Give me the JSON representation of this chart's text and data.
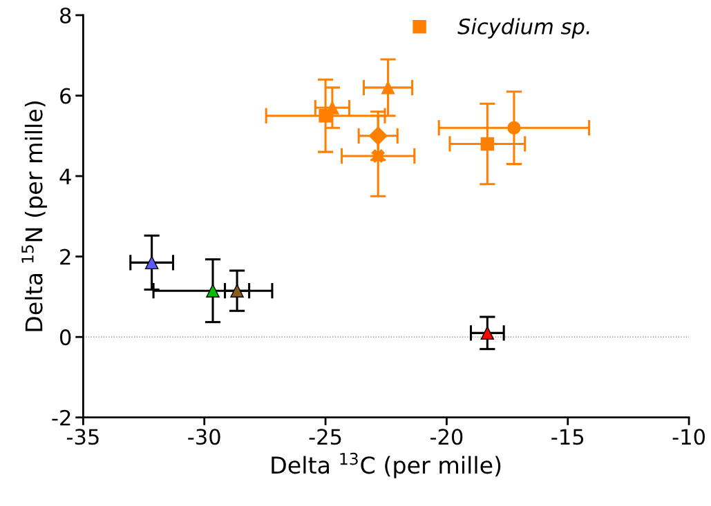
{
  "chart_data": {
    "type": "scatter",
    "xlabel": "Delta $^{13}$C (per mille)",
    "ylabel": "Delta $^{15}$N (per mille)",
    "xlim": [
      -35,
      -10
    ],
    "xticks": [
      -35,
      -30,
      -25,
      -20,
      -15,
      -10
    ],
    "ylim": [
      -2,
      8
    ],
    "yticks": [
      -2,
      0,
      2,
      4,
      6,
      8
    ],
    "grid": false,
    "legend": "top",
    "ref_lines": [
      {
        "axis": "y",
        "value": 0,
        "color": "#808080",
        "line_style": "dotted"
      }
    ],
    "series": [
      {
        "color": "#ff8000",
        "marker": "square",
        "x": [
          -25.0
        ],
        "values": [
          5.5
        ],
        "errors": [
          0.9
        ],
        "xerrors": [
          2.45
        ]
      },
      {
        "color": "#ff8000",
        "marker": "triangle",
        "x": [
          -24.72
        ],
        "values": [
          5.7
        ],
        "errors": [
          0.5
        ],
        "xerrors": [
          0.7
        ]
      },
      {
        "color": "#ff8000",
        "marker": "triangle",
        "x": [
          -22.42
        ],
        "values": [
          6.2
        ],
        "errors": [
          0.7
        ],
        "xerrors": [
          1.0
        ]
      },
      {
        "color": "#ff8000",
        "marker": "diamond",
        "x": [
          -22.83
        ],
        "values": [
          5.0
        ],
        "errors": [
          0.6
        ],
        "xerrors": [
          0.8
        ]
      },
      {
        "color": "#ff8000",
        "marker": "cross",
        "x": [
          -22.83
        ],
        "values": [
          4.5
        ],
        "errors": [
          1.0
        ],
        "xerrors": [
          1.5
        ]
      },
      {
        "name": "Sicydium sp.",
        "color": "#ff8000",
        "marker": "square",
        "x": [
          -18.32
        ],
        "values": [
          4.8
        ],
        "errors": [
          1.0
        ],
        "xerrors": [
          1.55
        ]
      },
      {
        "color": "#ff8000",
        "marker": "circle",
        "x": [
          -17.22
        ],
        "values": [
          5.2
        ],
        "errors": [
          0.9
        ],
        "xerrors": [
          3.1
        ]
      },
      {
        "color": "#5b5bff",
        "marker": "triangle",
        "x": [
          -32.17
        ],
        "values": [
          1.85
        ],
        "errors": [
          0.67
        ],
        "xerrors": [
          0.88
        ]
      },
      {
        "color": "#00c000",
        "marker": "triangle",
        "x": [
          -29.65
        ],
        "values": [
          1.15
        ],
        "errors": [
          0.78
        ],
        "xerrors": [
          2.45
        ]
      },
      {
        "color": "#8b5a1e",
        "marker": "triangle",
        "x": [
          -28.65
        ],
        "values": [
          1.15
        ],
        "errors": [
          0.5
        ],
        "xerrors": [
          0.5
        ]
      },
      {
        "color": "#ff0000",
        "marker": "triangle",
        "x": [
          -18.32
        ],
        "values": [
          0.1
        ],
        "errors": [
          0.4
        ],
        "xerrors": [
          0.68
        ]
      }
    ]
  }
}
